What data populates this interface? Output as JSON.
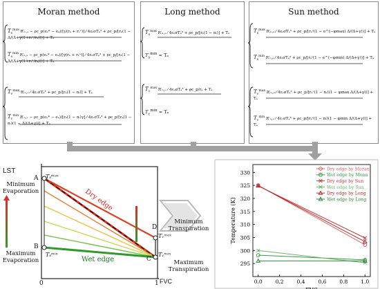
{
  "methods": [
    {
      "title": "Moran method",
      "eqs": [
        {
          "lhs": "T",
          "sub": "s",
          "sup": "max",
          "body": "R′ₙ,ₛ − ρc_p(eₛ* − eₐ)/[γ(rₐ + rₛˣ)] ⁄ 4εₛσTₐ³ + ρc_p/[rₐ(1 − Δ/(Δ+γ(1+rₛˣ/rₐ)))] + Tₐ"
        },
        {
          "lhs": "T",
          "sub": "s",
          "sup": "min",
          "body": "R′ₙ,ₛ − ρc_p(eₛ* − eₐ)/[γ(rₐ + rₛⁿ)] ⁄ 4εₛσTₐ³ + ρc_p/[rₐ(1 − Δ/(Δ+γ(1+rₛⁿ/rₐ)))] + Tₐ"
        },
        {
          "lhs": "T",
          "sub": "v",
          "sup": "max",
          "body": "R′ₙ,ᵥ ⁄ 4εᵥσTₐ³ + ρc_p/[rₐ(1 − nᵢ)] + Tₐ"
        },
        {
          "lhs": "T",
          "sub": "v",
          "sup": "min",
          "body": "R′ₙ,ᵥ − ρc_p(eᵥ* − eₐ)/[rₐ(1 − nᵢ)γ] ⁄ 4εᵥσTₐ³ + ρc_p/[rₐ(1 − nᵢ)(1 − Δ/(Δ+γ))] + Tₐ"
        }
      ]
    },
    {
      "title": "Long method",
      "eqs": [
        {
          "lhs": "T",
          "sub": "s",
          "sup": "max",
          "body": "R′ₙ,ₛ ⁄ 4εₛσTₐ³ + ρc_p/[rₐ(1 − nᵢ)] + Tₐ"
        },
        {
          "lhs": "T",
          "sub": "s",
          "sup": "min",
          "body": "Tₐ"
        },
        {
          "lhs": "T",
          "sub": "c",
          "sup": "max",
          "body": "R′ₙ,ᵥ ⁄ 4εᵥσTₐ³ + ρc_p/rₐ + Tₐ"
        },
        {
          "lhs": "T",
          "sub": "c",
          "sup": "min",
          "body": "Tₐ"
        }
      ]
    },
    {
      "title": "Sun method",
      "eqs": [
        {
          "lhs": "T",
          "sub": "s",
          "sup": "max",
          "body": "R′ₙ,ₛ ⁄ 4εₛσTₐ³ + ρc_p/[rₐˢ(1 − e^(−φmax) Δ/(Δ+γ))] + Tₐ"
        },
        {
          "lhs": "T",
          "sub": "s",
          "sup": "min",
          "body": "R′ₙ,ₛ ⁄ 4εₛσTₐ³ + ρc_p/[rₐˢ(1 − e^(−φmin) Δ/(Δ+γ))] + Tₐ"
        },
        {
          "lhs": "T",
          "sub": "v",
          "sup": "max",
          "body": "R′ₙ,ᵥ ⁄ 4εᵥσTₐ³ + ρc_p/[rₐᵛ(1 − nᵢ)(1 − φmax Δ/(Δ+γ))] + Tₐ"
        },
        {
          "lhs": "T",
          "sub": "v",
          "sup": "min",
          "body": "R′ₙ,ᵥ ⁄ 4εᵥσTₐ³ + ρc_p/[rₐᵛ(1 − nᵢ)(1 − φmin Δ/(Δ+γ))] + Tₐ"
        }
      ]
    }
  ],
  "concept": {
    "y_axis": "LST",
    "x_axis": "FVC",
    "x0": "0",
    "x1": "1",
    "min_evap": "Minimum Evaporation",
    "max_evap": "Maximum Evaporation",
    "min_transp": "Minimum Transpiration",
    "max_transp": "Maximum Transpiration",
    "dry_edge": "Dry edge",
    "wet_edge": "Wet edge",
    "A": "A",
    "B": "B",
    "C": "C",
    "D": "D",
    "ts_max": "Tₛᵐᵃˣ",
    "ts_min": "Tₛᵐⁱⁿ",
    "tv_max": "Tᵥᵐᵃˣ",
    "tv_min": "Tᵥᵐⁱⁿ"
  },
  "chart_data": {
    "type": "line",
    "xlabel": "FVC",
    "ylabel": "Temperature (K)",
    "xlim": [
      -0.05,
      1.05
    ],
    "ylim": [
      290,
      333
    ],
    "xticks": [
      0.0,
      0.2,
      0.4,
      0.6,
      0.8,
      1.0
    ],
    "yticks": [
      295,
      300,
      305,
      310,
      315,
      320,
      325,
      330
    ],
    "legend_position": "top-right",
    "series": [
      {
        "name": "Dry edge by Moran",
        "color": "#e06060",
        "marker": "circle",
        "x": [
          0,
          1
        ],
        "y": [
          325.0,
          302.2
        ]
      },
      {
        "name": "Wet edge by Monn",
        "color": "#3a9a4a",
        "marker": "circle",
        "x": [
          0,
          1
        ],
        "y": [
          298.2,
          296.4
        ]
      },
      {
        "name": "Dry edge by Sun",
        "color": "#cc3333",
        "marker": "x",
        "x": [
          0,
          1
        ],
        "y": [
          324.8,
          304.8
        ]
      },
      {
        "name": "Wet edge by Sun",
        "color": "#66b866",
        "marker": "x",
        "x": [
          0,
          1
        ],
        "y": [
          300.0,
          295.3
        ]
      },
      {
        "name": "Dry edge by Long",
        "color": "#b52a2a",
        "marker": "triangle",
        "x": [
          0,
          1
        ],
        "y": [
          324.9,
          303.4
        ]
      },
      {
        "name": "Wet edge by Long",
        "color": "#2f8a3a",
        "marker": "triangle",
        "x": [
          0,
          1
        ],
        "y": [
          296.0,
          296.0
        ]
      }
    ]
  }
}
